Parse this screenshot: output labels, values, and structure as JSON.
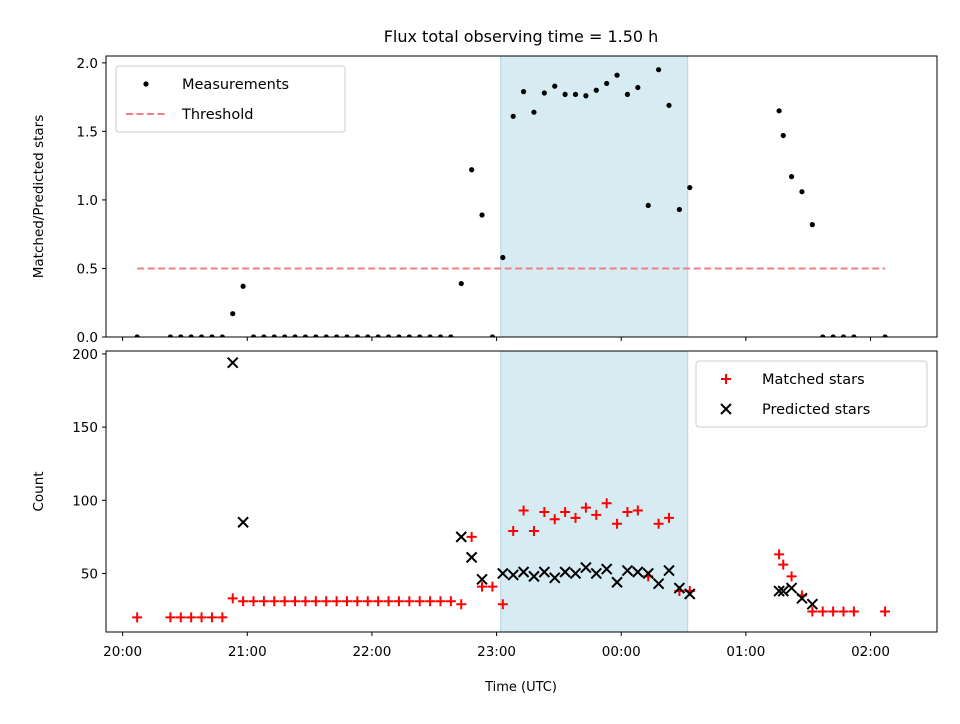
{
  "chart_data": [
    {
      "type": "scatter",
      "title": "Flux total observing time = 1.50 h",
      "xlabel": "",
      "ylabel": "Matched/Predicted stars",
      "xlim": [
        "20:00 -0:07",
        "02:24"
      ],
      "ylim": [
        0,
        2.05
      ],
      "yticks": [
        "0.0",
        "0.5",
        "1.0",
        "1.5",
        "2.0"
      ],
      "shaded_span": {
        "from": "23:02",
        "to": "00:32",
        "color": "#add8e6"
      },
      "legend_position": "upper left",
      "series": [
        {
          "name": "Measurements",
          "marker": "dot",
          "color": "#000000",
          "points": [
            [
              "20:07",
              0
            ],
            [
              "20:23",
              0
            ],
            [
              "20:28",
              0
            ],
            [
              "20:33",
              0
            ],
            [
              "20:38",
              0
            ],
            [
              "20:43",
              0
            ],
            [
              "20:48",
              0
            ],
            [
              "20:53",
              0.17
            ],
            [
              "20:58",
              0.37
            ],
            [
              "21:03",
              0
            ],
            [
              "21:08",
              0
            ],
            [
              "21:13",
              0
            ],
            [
              "21:18",
              0
            ],
            [
              "21:23",
              0
            ],
            [
              "21:28",
              0
            ],
            [
              "21:33",
              0
            ],
            [
              "21:38",
              0
            ],
            [
              "21:43",
              0
            ],
            [
              "21:48",
              0
            ],
            [
              "21:53",
              0
            ],
            [
              "21:58",
              0
            ],
            [
              "22:03",
              0
            ],
            [
              "22:08",
              0
            ],
            [
              "22:13",
              0
            ],
            [
              "22:18",
              0
            ],
            [
              "22:23",
              0
            ],
            [
              "22:28",
              0
            ],
            [
              "22:33",
              0
            ],
            [
              "22:38",
              0
            ],
            [
              "22:43",
              0.39
            ],
            [
              "22:48",
              1.22
            ],
            [
              "22:53",
              0.89
            ],
            [
              "22:58",
              0
            ],
            [
              "23:03",
              0.58
            ],
            [
              "23:08",
              1.61
            ],
            [
              "23:13",
              1.79
            ],
            [
              "23:18",
              1.64
            ],
            [
              "23:23",
              1.78
            ],
            [
              "23:28",
              1.83
            ],
            [
              "23:33",
              1.77
            ],
            [
              "23:38",
              1.77
            ],
            [
              "23:43",
              1.76
            ],
            [
              "23:48",
              1.8
            ],
            [
              "23:53",
              1.85
            ],
            [
              "23:58",
              1.91
            ],
            [
              "00:03",
              1.77
            ],
            [
              "00:08",
              1.82
            ],
            [
              "00:13",
              0.96
            ],
            [
              "00:18",
              1.95
            ],
            [
              "00:23",
              1.69
            ],
            [
              "00:28",
              0.93
            ],
            [
              "00:33",
              1.09
            ],
            [
              "01:16",
              1.65
            ],
            [
              "01:18",
              1.47
            ],
            [
              "01:22",
              1.17
            ],
            [
              "01:27",
              1.06
            ],
            [
              "01:32",
              0.82
            ],
            [
              "01:37",
              0
            ],
            [
              "01:42",
              0
            ],
            [
              "01:47",
              0
            ],
            [
              "01:52",
              0
            ],
            [
              "02:07",
              0
            ]
          ]
        },
        {
          "name": "Threshold",
          "type": "line",
          "style": "dashed",
          "color": "#f08080",
          "points": [
            [
              "20:07",
              0.5
            ],
            [
              "02:07",
              0.5
            ]
          ]
        }
      ]
    },
    {
      "type": "scatter",
      "title": "",
      "xlabel": "Time (UTC)",
      "ylabel": "Count",
      "ylim": [
        10,
        202
      ],
      "yticks": [
        "50",
        "100",
        "150",
        "200"
      ],
      "xticks": [
        "20:00",
        "21:00",
        "22:00",
        "23:00",
        "00:00",
        "01:00",
        "02:00"
      ],
      "shaded_span": {
        "from": "23:02",
        "to": "00:32",
        "color": "#add8e6"
      },
      "legend_position": "upper right",
      "series": [
        {
          "name": "Matched stars",
          "marker": "plus",
          "color": "#ff0000",
          "points": [
            [
              "20:07",
              20
            ],
            [
              "20:23",
              20
            ],
            [
              "20:28",
              20
            ],
            [
              "20:33",
              20
            ],
            [
              "20:38",
              20
            ],
            [
              "20:43",
              20
            ],
            [
              "20:48",
              20
            ],
            [
              "20:53",
              33
            ],
            [
              "20:58",
              31
            ],
            [
              "21:03",
              31
            ],
            [
              "21:08",
              31
            ],
            [
              "21:13",
              31
            ],
            [
              "21:18",
              31
            ],
            [
              "21:23",
              31
            ],
            [
              "21:28",
              31
            ],
            [
              "21:33",
              31
            ],
            [
              "21:38",
              31
            ],
            [
              "21:43",
              31
            ],
            [
              "21:48",
              31
            ],
            [
              "21:53",
              31
            ],
            [
              "21:58",
              31
            ],
            [
              "22:03",
              31
            ],
            [
              "22:08",
              31
            ],
            [
              "22:13",
              31
            ],
            [
              "22:18",
              31
            ],
            [
              "22:23",
              31
            ],
            [
              "22:28",
              31
            ],
            [
              "22:33",
              31
            ],
            [
              "22:38",
              31
            ],
            [
              "22:43",
              29
            ],
            [
              "22:48",
              75
            ],
            [
              "22:53",
              41
            ],
            [
              "22:58",
              41
            ],
            [
              "23:03",
              29
            ],
            [
              "23:08",
              79
            ],
            [
              "23:13",
              93
            ],
            [
              "23:18",
              79
            ],
            [
              "23:23",
              92
            ],
            [
              "23:28",
              87
            ],
            [
              "23:33",
              92
            ],
            [
              "23:38",
              88
            ],
            [
              "23:43",
              95
            ],
            [
              "23:48",
              90
            ],
            [
              "23:53",
              98
            ],
            [
              "23:58",
              84
            ],
            [
              "00:03",
              92
            ],
            [
              "00:08",
              93
            ],
            [
              "00:13",
              48
            ],
            [
              "00:18",
              84
            ],
            [
              "00:23",
              88
            ],
            [
              "00:28",
              38
            ],
            [
              "00:33",
              38
            ],
            [
              "01:16",
              63
            ],
            [
              "01:18",
              56
            ],
            [
              "01:22",
              48
            ],
            [
              "01:27",
              35
            ],
            [
              "01:32",
              24
            ],
            [
              "01:37",
              24
            ],
            [
              "01:42",
              24
            ],
            [
              "01:47",
              24
            ],
            [
              "01:52",
              24
            ],
            [
              "02:07",
              24
            ]
          ]
        },
        {
          "name": "Predicted stars",
          "marker": "x",
          "color": "#000000",
          "points": [
            [
              "20:53",
              194
            ],
            [
              "20:58",
              85
            ],
            [
              "22:43",
              75
            ],
            [
              "22:48",
              61
            ],
            [
              "22:53",
              46
            ],
            [
              "23:03",
              50
            ],
            [
              "23:08",
              49
            ],
            [
              "23:13",
              51
            ],
            [
              "23:18",
              48
            ],
            [
              "23:23",
              51
            ],
            [
              "23:28",
              47
            ],
            [
              "23:33",
              51
            ],
            [
              "23:38",
              50
            ],
            [
              "23:43",
              54
            ],
            [
              "23:48",
              50
            ],
            [
              "23:53",
              53
            ],
            [
              "23:58",
              44
            ],
            [
              "00:03",
              52
            ],
            [
              "00:08",
              51
            ],
            [
              "00:13",
              50
            ],
            [
              "00:18",
              43
            ],
            [
              "00:23",
              52
            ],
            [
              "00:28",
              40
            ],
            [
              "00:33",
              36
            ],
            [
              "01:16",
              38
            ],
            [
              "01:18",
              38
            ],
            [
              "01:22",
              40
            ],
            [
              "01:27",
              33
            ],
            [
              "01:32",
              29
            ]
          ]
        }
      ]
    }
  ]
}
